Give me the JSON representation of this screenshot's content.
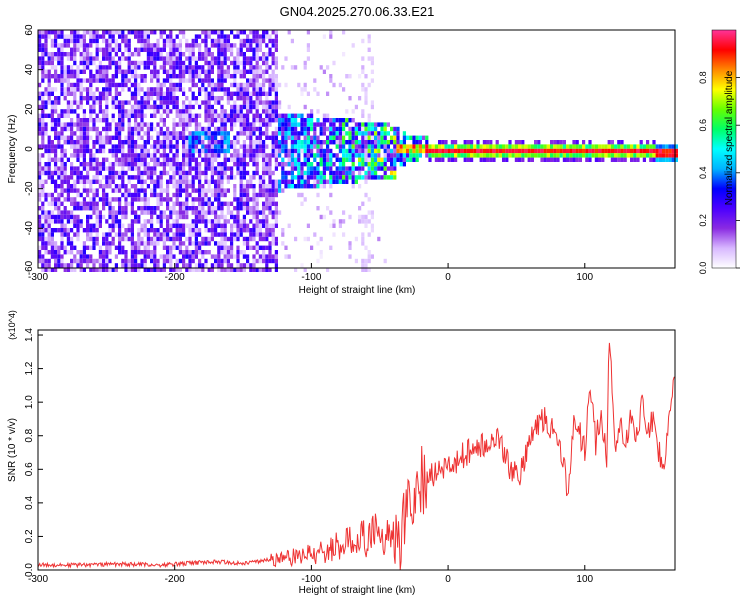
{
  "title": "GN04.2025.270.06.33.E21",
  "colors": {
    "snr_line": "#ee3333",
    "axis": "#000000"
  },
  "chart_data": [
    {
      "type": "heatmap",
      "title": "GN04.2025.270.06.33.E21",
      "xlabel": "Height of straight line (km)",
      "ylabel": "Frequency (Hz)",
      "xlim": [
        -300,
        166
      ],
      "ylim": [
        -60,
        60
      ],
      "x_ticks": [
        "-300",
        "-200",
        "-100",
        "0",
        "100"
      ],
      "y_ticks": [
        "-60",
        "-40",
        "-20",
        "0",
        "20",
        "40",
        "60"
      ],
      "colorbar": {
        "label": "Normalized spectral amplitude",
        "range": [
          0,
          1
        ],
        "ticks": [
          "0.0",
          "0.2",
          "0.4",
          "0.6",
          "0.8"
        ],
        "colormap": [
          "#ffffff",
          "#d8b8ff",
          "#8a2be2",
          "#4b00ff",
          "#0000ff",
          "#00b4ff",
          "#00ffff",
          "#00ff66",
          "#66ff00",
          "#ffff00",
          "#ff8800",
          "#ff0000",
          "#ff3399"
        ]
      },
      "features": [
        {
          "region": "noise",
          "x_range": [
            -300,
            -125
          ],
          "freq_range": [
            -60,
            60
          ],
          "amplitude": 0.15
        },
        {
          "region": "transition",
          "x_range": [
            -125,
            -40
          ],
          "freq_range": [
            -20,
            15
          ],
          "amplitude": 0.35
        },
        {
          "region": "signal",
          "x_range": [
            -40,
            166
          ],
          "freq_center": 0,
          "freq_width": 4,
          "amplitude": 0.95
        }
      ]
    },
    {
      "type": "line",
      "xlabel": "Height of straight line (km)",
      "ylabel": "SNR (10 * v/v)",
      "y_multiplier": "(x10^4)",
      "xlim": [
        -300,
        166
      ],
      "ylim": [
        0,
        1.43
      ],
      "x_ticks": [
        "-300",
        "-200",
        "-100",
        "0",
        "100"
      ],
      "y_ticks": [
        "0.0",
        "0.2",
        "0.4",
        "0.6",
        "0.8",
        "1.0",
        "1.2",
        "1.4"
      ],
      "series": [
        {
          "x": [
            -300,
            -270,
            -240,
            -210,
            -190,
            -170,
            -150,
            -130,
            -115,
            -100,
            -85,
            -75,
            -65,
            -58,
            -52,
            -45,
            -40,
            -35,
            -30,
            -26,
            -22,
            -18,
            -14,
            -10,
            -6,
            -2,
            2,
            6,
            10,
            15,
            20,
            25,
            30,
            35,
            40,
            45,
            50,
            55,
            58,
            62,
            66,
            70,
            74,
            78,
            82,
            86,
            88,
            92,
            96,
            100,
            104,
            108,
            112,
            116,
            118,
            122,
            126,
            130,
            134,
            138,
            142,
            146,
            150,
            154,
            158,
            162,
            166
          ],
          "y": [
            0.03,
            0.03,
            0.035,
            0.03,
            0.04,
            0.05,
            0.04,
            0.06,
            0.07,
            0.1,
            0.13,
            0.16,
            0.2,
            0.18,
            0.24,
            0.2,
            0.26,
            0.18,
            0.35,
            0.42,
            0.5,
            0.55,
            0.56,
            0.58,
            0.6,
            0.62,
            0.6,
            0.64,
            0.68,
            0.7,
            0.72,
            0.74,
            0.76,
            0.8,
            0.72,
            0.62,
            0.55,
            0.62,
            0.72,
            0.8,
            0.88,
            0.9,
            0.86,
            0.88,
            0.72,
            0.55,
            0.4,
            0.95,
            0.82,
            0.7,
            1.1,
            0.75,
            0.95,
            0.65,
            1.43,
            0.7,
            0.9,
            0.72,
            0.95,
            0.8,
            0.98,
            0.85,
            0.9,
            0.72,
            0.6,
            0.98,
            1.15
          ]
        }
      ]
    }
  ]
}
